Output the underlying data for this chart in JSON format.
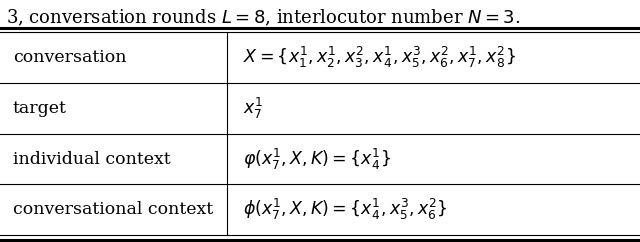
{
  "rows": [
    {
      "label": "conversation",
      "formula": "$X = \\{x_1^1, x_2^1, x_3^2, x_4^1, x_5^3, x_6^2, x_7^1, x_8^2\\}$"
    },
    {
      "label": "target",
      "formula": "$x_7^1$"
    },
    {
      "label": "individual context",
      "formula": "$\\varphi(x_7^1, X, K) = \\{x_4^1\\}$"
    },
    {
      "label": "conversational context",
      "formula": "$\\phi(x_7^1, X, K) = \\{x_4^1, x_5^3, x_6^2\\}$"
    }
  ],
  "caption_text": "3, conversation rounds $L = 8$, interlocutor number $N = 3$.",
  "background_color": "#ffffff",
  "text_color": "#000000",
  "line_color": "#000000",
  "col_split": 0.355,
  "fontsize": 12.5,
  "caption_fontsize": 13
}
